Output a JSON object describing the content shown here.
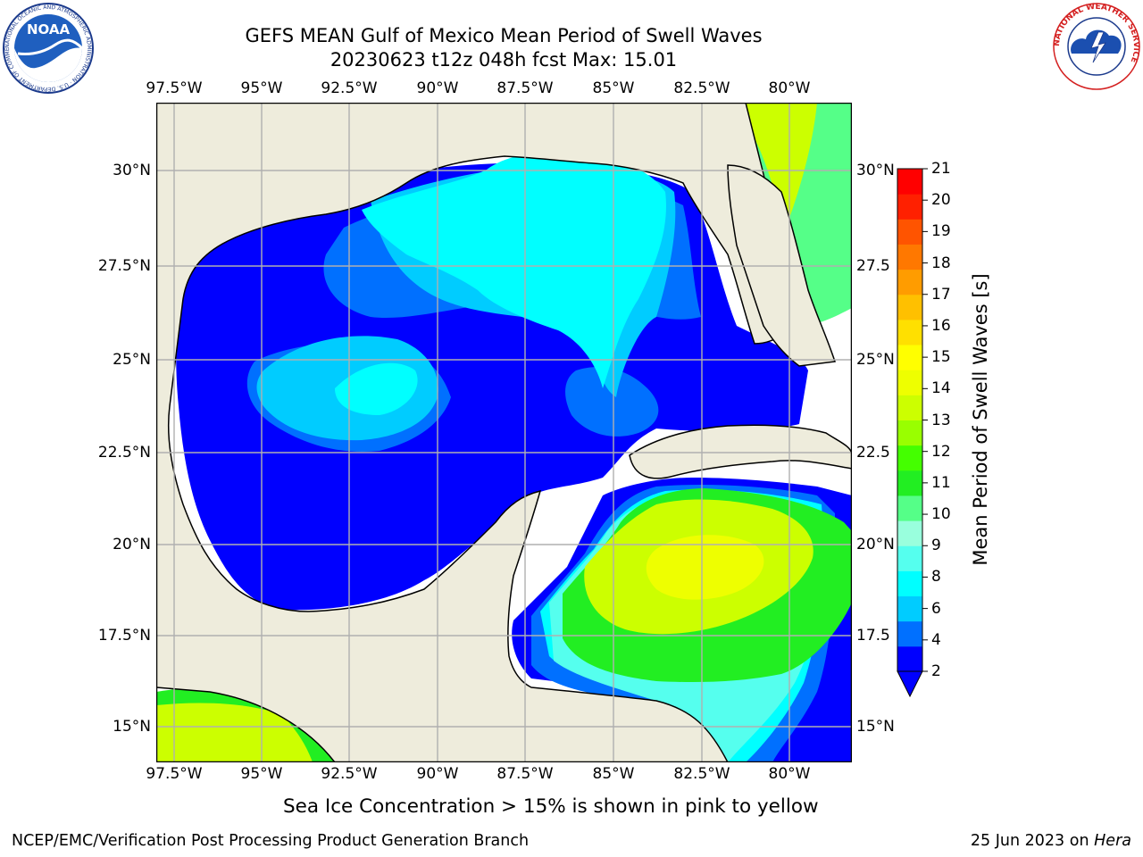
{
  "title": {
    "line1": "GEFS MEAN Gulf of Mexico Mean Period of Swell Waves",
    "line2": "20230623 t12z 048h fcst   Max: 15.01"
  },
  "map": {
    "lon_labels": [
      "97.5°W",
      "95°W",
      "92.5°W",
      "90°W",
      "87.5°W",
      "85°W",
      "82.5°W",
      "80°W"
    ],
    "lat_labels_left": [
      "30°N",
      "27.5°N",
      "25°N",
      "22.5°N",
      "20°N",
      "17.5°N",
      "15°N"
    ],
    "lat_labels_right": [
      "30°N",
      "27.5",
      "25°N",
      "22.5",
      "20°N",
      "17.5",
      "15°N"
    ],
    "colors": {
      "land": "#eeecdc",
      "ocean_bg": "#ffffff",
      "grid": "#b0b0b0"
    }
  },
  "colorbar": {
    "label": "Mean Period of Swell Waves [s]",
    "ticks": [
      "2",
      "4",
      "6",
      "8",
      "9",
      "10",
      "11",
      "12",
      "13",
      "14",
      "15",
      "16",
      "17",
      "18",
      "19",
      "20",
      "21"
    ],
    "colors": [
      "#0000ff",
      "#0070ff",
      "#00ccff",
      "#00ffff",
      "#55ffee",
      "#99ffdd",
      "#55ff88",
      "#22ee22",
      "#44ff00",
      "#99ff00",
      "#ccff00",
      "#eeff00",
      "#ffff00",
      "#ffe000",
      "#ffc000",
      "#ff9c00",
      "#ff7800",
      "#ff5400",
      "#ff2000",
      "#ff0000"
    ],
    "under_color": "#0000ff"
  },
  "logos": {
    "noaa": {
      "text": "NOAA",
      "ring_text": "NATIONAL OCEANIC AND ATMOSPHERIC ADMINISTRATION · U.S. DEPARTMENT OF COMMERCE"
    },
    "nws": {
      "ring_text": "NATIONAL WEATHER SERVICE"
    }
  },
  "note": "Sea Ice Concentration > 15% is shown in pink to yellow",
  "footer": {
    "left": "NCEP/EMC/Verification Post Processing Product Generation Branch",
    "right_prefix": "25 Jun 2023 on",
    "right_host": "Hera"
  }
}
